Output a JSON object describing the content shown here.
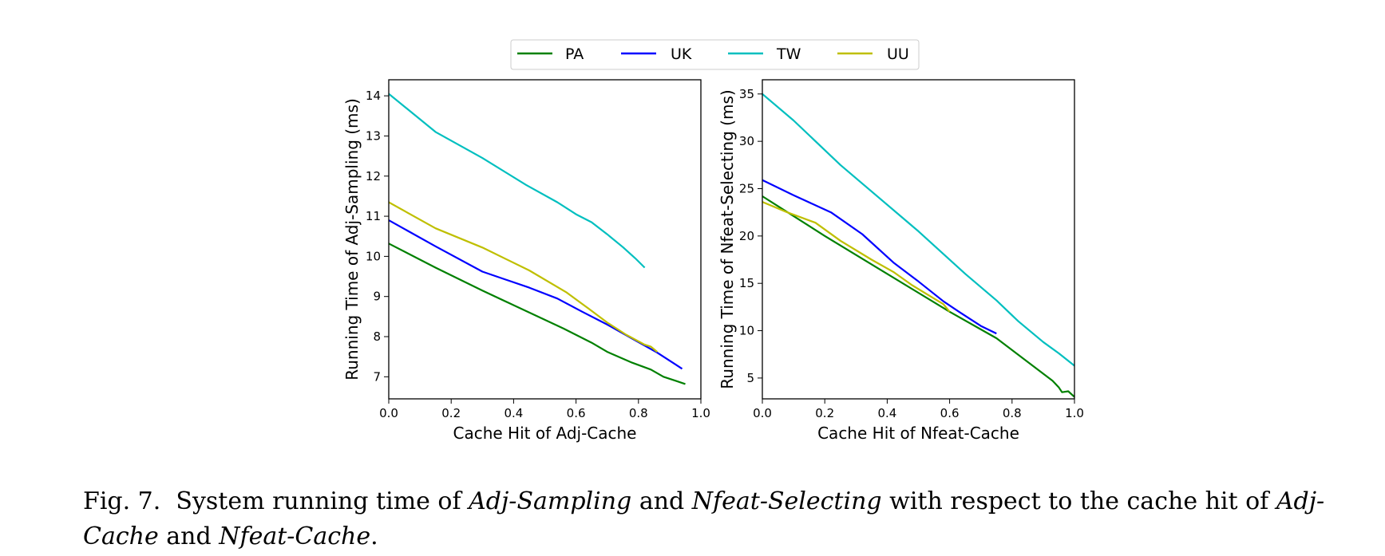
{
  "caption": {
    "fig_label": "Fig. 7.",
    "t1": "System running time of",
    "i1": "Adj-Sampling",
    "t2": "and",
    "i2": "Nfeat-Selecting",
    "t3": "with respect to the cache hit of",
    "i3": "Adj-Cache",
    "t4": "and",
    "i4": "Nfeat-Cache",
    "t5": "."
  },
  "legend": {
    "placement": "top-center",
    "entries": [
      {
        "name": "PA",
        "color": "#008000"
      },
      {
        "name": "UK",
        "color": "#0000ff"
      },
      {
        "name": "TW",
        "color": "#00bfbf"
      },
      {
        "name": "UU",
        "color": "#bfbf00"
      }
    ]
  },
  "chart_data": [
    {
      "type": "line",
      "xlabel": "Cache Hit of Adj-Cache",
      "ylabel": "Running Time of Adj-Sampling (ms)",
      "xlim": [
        0,
        1.0
      ],
      "ylim": [
        6.45,
        14.4
      ],
      "xticks": [
        "0.0",
        "0.2",
        "0.4",
        "0.6",
        "0.8",
        "1.0"
      ],
      "yticks": [
        "7",
        "8",
        "9",
        "10",
        "11",
        "12",
        "13",
        "14"
      ],
      "grid": false,
      "series": [
        {
          "name": "PA",
          "color": "#008000",
          "x": [
            0.0,
            0.15,
            0.3,
            0.45,
            0.56,
            0.65,
            0.7,
            0.78,
            0.84,
            0.88,
            0.92,
            0.95
          ],
          "y": [
            10.32,
            9.72,
            9.15,
            8.6,
            8.2,
            7.85,
            7.62,
            7.35,
            7.18,
            7.0,
            6.9,
            6.82
          ]
        },
        {
          "name": "UK",
          "color": "#0000ff",
          "x": [
            0.0,
            0.15,
            0.3,
            0.45,
            0.54,
            0.62,
            0.7,
            0.78,
            0.86,
            0.92,
            0.94
          ],
          "y": [
            10.9,
            10.25,
            9.62,
            9.22,
            8.95,
            8.62,
            8.3,
            7.95,
            7.6,
            7.3,
            7.2
          ]
        },
        {
          "name": "TW",
          "color": "#00bfbf",
          "x": [
            0.0,
            0.15,
            0.3,
            0.44,
            0.54,
            0.6,
            0.65,
            0.7,
            0.75,
            0.79,
            0.82
          ],
          "y": [
            14.05,
            13.1,
            12.45,
            11.78,
            11.35,
            11.05,
            10.85,
            10.55,
            10.23,
            9.95,
            9.72
          ]
        },
        {
          "name": "UU",
          "color": "#bfbf00",
          "x": [
            0.0,
            0.15,
            0.3,
            0.45,
            0.57,
            0.64,
            0.7,
            0.76,
            0.82,
            0.84,
            0.86
          ],
          "y": [
            11.35,
            10.7,
            10.22,
            9.65,
            9.1,
            8.7,
            8.35,
            8.05,
            7.8,
            7.75,
            7.62
          ]
        }
      ]
    },
    {
      "type": "line",
      "xlabel": "Cache Hit of Nfeat-Cache",
      "ylabel": "Running Time of Nfeat-Selecting (ms)",
      "xlim": [
        0,
        1.0
      ],
      "ylim": [
        2.8,
        36.5
      ],
      "xticks": [
        "0.0",
        "0.2",
        "0.4",
        "0.6",
        "0.8",
        "1.0"
      ],
      "yticks": [
        "5",
        "10",
        "15",
        "20",
        "25",
        "30",
        "35"
      ],
      "grid": false,
      "series": [
        {
          "name": "PA",
          "color": "#008000",
          "x": [
            0.0,
            0.2,
            0.4,
            0.6,
            0.75,
            0.87,
            0.93,
            0.95,
            0.96,
            0.98,
            1.0
          ],
          "y": [
            24.2,
            20.0,
            16.0,
            12.0,
            9.2,
            6.2,
            4.7,
            4.0,
            3.5,
            3.6,
            3.0
          ]
        },
        {
          "name": "UK",
          "color": "#0000ff",
          "x": [
            0.0,
            0.1,
            0.22,
            0.32,
            0.42,
            0.5,
            0.58,
            0.63,
            0.7,
            0.75
          ],
          "y": [
            25.9,
            24.3,
            22.5,
            20.2,
            17.2,
            15.2,
            13.1,
            12.0,
            10.5,
            9.7
          ]
        },
        {
          "name": "TW",
          "color": "#00bfbf",
          "x": [
            0.0,
            0.1,
            0.25,
            0.5,
            0.65,
            0.75,
            0.82,
            0.9,
            0.95,
            1.0
          ],
          "y": [
            35.0,
            32.2,
            27.5,
            20.5,
            16.0,
            13.2,
            11.0,
            8.8,
            7.6,
            6.3
          ]
        },
        {
          "name": "UU",
          "color": "#bfbf00",
          "x": [
            0.0,
            0.08,
            0.17,
            0.25,
            0.35,
            0.42,
            0.48,
            0.53,
            0.58,
            0.6
          ],
          "y": [
            23.6,
            22.5,
            21.4,
            19.5,
            17.5,
            16.2,
            14.8,
            13.8,
            12.8,
            12.0
          ]
        }
      ]
    }
  ]
}
